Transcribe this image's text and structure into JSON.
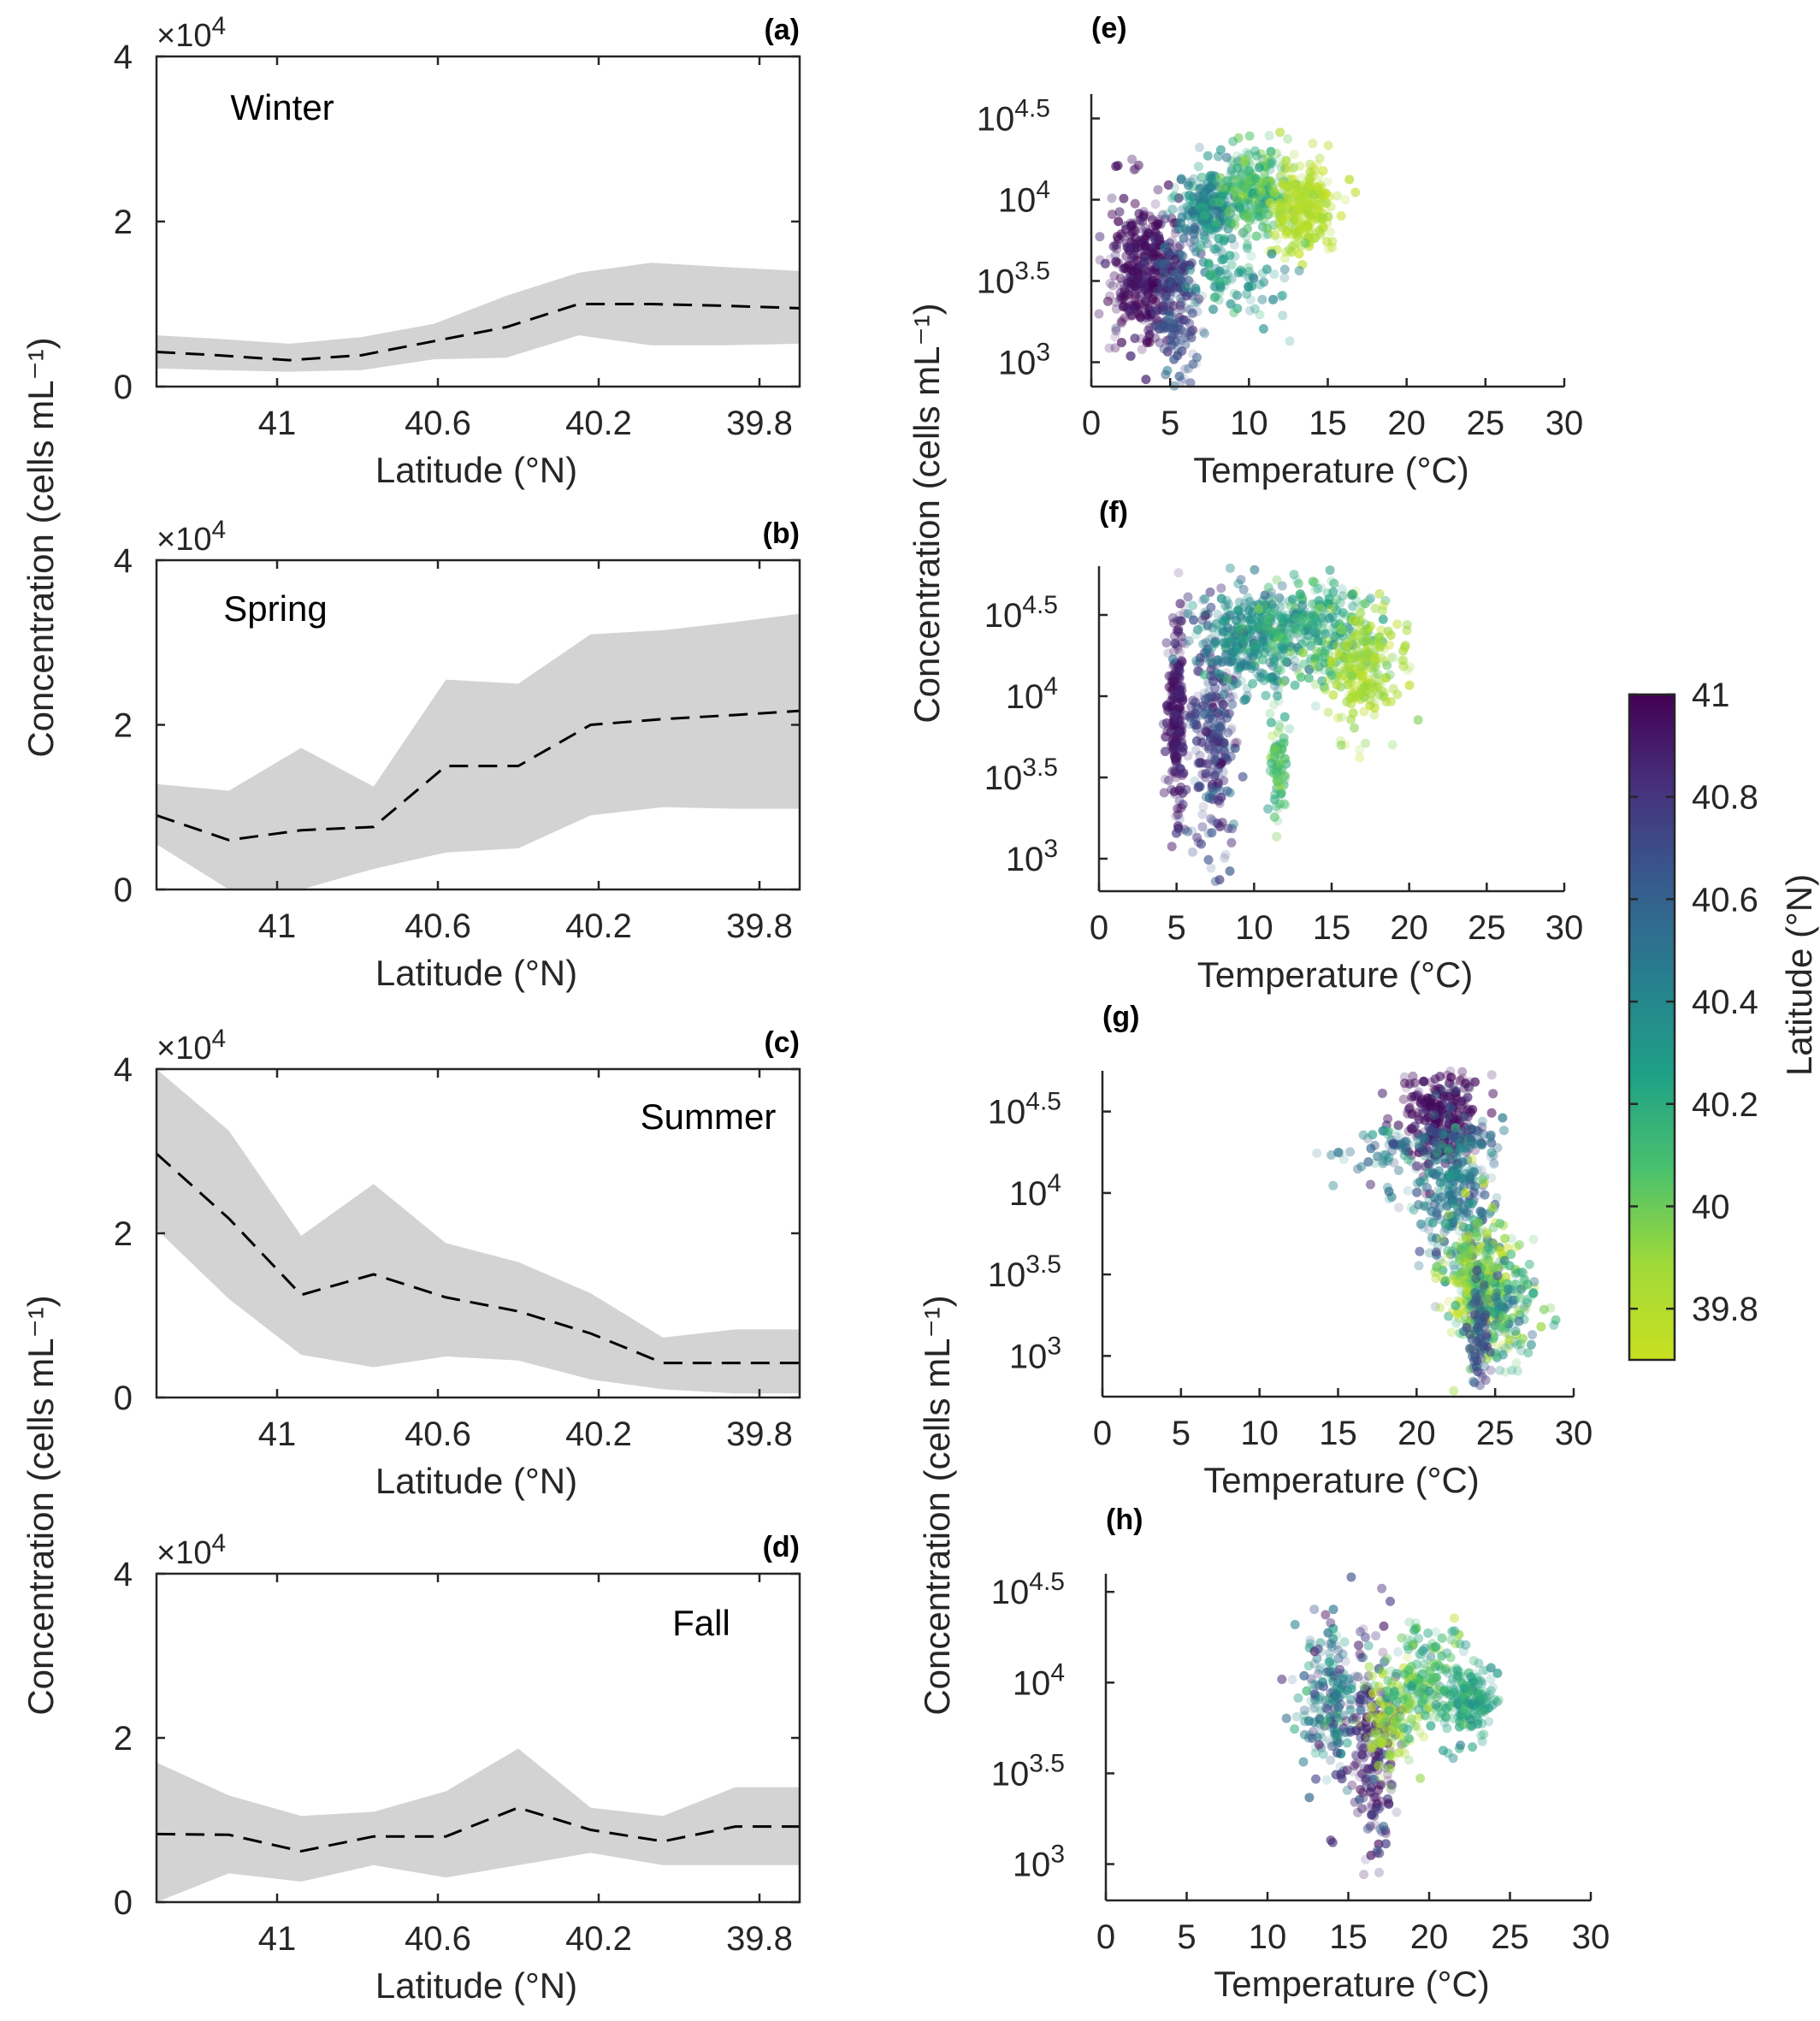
{
  "colors": {
    "band": "#d3d3d3",
    "mean_line": "#000000",
    "axis": "#262626",
    "colormap": [
      "#440154",
      "#46327e",
      "#365c8d",
      "#277f8e",
      "#1fa187",
      "#4ac16d",
      "#a0da39",
      "#c8e020"
    ]
  },
  "shared_labels": {
    "ylabel_left_top": "Concentration (cells mL⁻¹)",
    "ylabel_left_bottom": "Concentration (cells mL⁻¹)",
    "ylabel_right": "Concentration (cells mL⁻¹)"
  },
  "colorbar": {
    "label": "Latitude (°N)",
    "ticks": [
      "41",
      "40.8",
      "40.6",
      "40.4",
      "40.2",
      "40",
      "39.8"
    ],
    "tick_values": [
      41,
      40.8,
      40.6,
      40.4,
      40.2,
      40,
      39.8
    ],
    "range": [
      39.7,
      41.0
    ]
  },
  "chart_data": [
    {
      "type": "area",
      "panel": "(a)",
      "season": "Winter",
      "xlabel": "Latitude (°N)",
      "x_ticks": [
        "41",
        "40.6",
        "40.2",
        "39.8"
      ],
      "x_tick_values": [
        41,
        40.6,
        40.2,
        39.8
      ],
      "xlim": [
        41.3,
        39.7
      ],
      "ylim": [
        0,
        4
      ],
      "y_ticks": [
        "0",
        "2",
        "4"
      ],
      "y_multiplier": "× 10^4",
      "x": [
        41.3,
        41.15,
        40.97,
        40.79,
        40.61,
        40.43,
        40.25,
        40.07,
        39.89,
        39.7
      ],
      "mean": [
        0.42,
        0.38,
        0.32,
        0.38,
        0.55,
        0.72,
        1.0,
        1.0,
        0.98,
        0.95
      ],
      "lower": [
        0.22,
        0.2,
        0.18,
        0.2,
        0.33,
        0.35,
        0.62,
        0.5,
        0.5,
        0.52
      ],
      "upper": [
        0.62,
        0.58,
        0.52,
        0.6,
        0.76,
        1.1,
        1.38,
        1.5,
        1.45,
        1.4
      ]
    },
    {
      "type": "area",
      "panel": "(b)",
      "season": "Spring",
      "xlabel": "Latitude (°N)",
      "x_ticks": [
        "41",
        "40.6",
        "40.2",
        "39.8"
      ],
      "x_tick_values": [
        41,
        40.6,
        40.2,
        39.8
      ],
      "xlim": [
        41.3,
        39.7
      ],
      "ylim": [
        0,
        4
      ],
      "y_ticks": [
        "0",
        "2",
        "4"
      ],
      "y_multiplier": "× 10^4",
      "x": [
        41.3,
        41.12,
        40.94,
        40.76,
        40.58,
        40.4,
        40.22,
        40.04,
        39.86,
        39.7
      ],
      "mean": [
        0.9,
        0.6,
        0.72,
        0.76,
        1.5,
        1.5,
        2.0,
        2.07,
        2.12,
        2.17
      ],
      "lower": [
        0.55,
        0.0,
        0.0,
        0.25,
        0.45,
        0.5,
        0.9,
        1.0,
        0.98,
        0.98
      ],
      "upper": [
        1.28,
        1.2,
        1.72,
        1.25,
        2.55,
        2.5,
        3.1,
        3.15,
        3.25,
        3.35
      ]
    },
    {
      "type": "area",
      "panel": "(c)",
      "season": "Summer",
      "xlabel": "Latitude (°N)",
      "x_ticks": [
        "41",
        "40.6",
        "40.2",
        "39.8"
      ],
      "x_tick_values": [
        41,
        40.6,
        40.2,
        39.8
      ],
      "xlim": [
        41.3,
        39.7
      ],
      "ylim": [
        0,
        4
      ],
      "y_ticks": [
        "0",
        "2",
        "4"
      ],
      "y_multiplier": "× 10^4",
      "x": [
        41.3,
        41.12,
        40.94,
        40.76,
        40.58,
        40.4,
        40.22,
        40.04,
        39.86,
        39.7
      ],
      "mean": [
        2.97,
        2.18,
        1.25,
        1.5,
        1.22,
        1.05,
        0.78,
        0.42,
        0.42,
        0.42
      ],
      "lower": [
        2.05,
        1.2,
        0.52,
        0.37,
        0.5,
        0.45,
        0.22,
        0.1,
        0.05,
        0.05
      ],
      "upper": [
        4.0,
        3.25,
        1.97,
        2.6,
        1.88,
        1.65,
        1.27,
        0.73,
        0.83,
        0.83
      ]
    },
    {
      "type": "area",
      "panel": "(d)",
      "season": "Fall",
      "xlabel": "Latitude (°N)",
      "x_ticks": [
        "41",
        "40.6",
        "40.2",
        "39.8"
      ],
      "x_tick_values": [
        41,
        40.6,
        40.2,
        39.8
      ],
      "xlim": [
        41.3,
        39.7
      ],
      "ylim": [
        0,
        4
      ],
      "y_ticks": [
        "0",
        "2",
        "4"
      ],
      "y_multiplier": "× 10^4",
      "x": [
        41.3,
        41.12,
        40.94,
        40.76,
        40.58,
        40.4,
        40.22,
        40.04,
        39.86,
        39.7
      ],
      "mean": [
        0.83,
        0.82,
        0.62,
        0.8,
        0.8,
        1.15,
        0.88,
        0.74,
        0.92,
        0.92
      ],
      "lower": [
        0.0,
        0.35,
        0.25,
        0.45,
        0.3,
        0.45,
        0.6,
        0.45,
        0.45,
        0.45
      ],
      "upper": [
        1.7,
        1.3,
        1.05,
        1.1,
        1.35,
        1.87,
        1.15,
        1.05,
        1.4,
        1.4
      ]
    },
    {
      "type": "scatter",
      "panel": "(e)",
      "season": "Winter",
      "xlabel": "Temperature (°C)",
      "x_ticks": [
        "0",
        "5",
        "10",
        "15",
        "20",
        "25",
        "30"
      ],
      "x_tick_values": [
        0,
        5,
        10,
        15,
        20,
        25,
        30
      ],
      "xlim": [
        0,
        30
      ],
      "ylim_log10": [
        2.85,
        4.65
      ],
      "y_ticks": [
        "10^3",
        "10^3.5",
        "10^4",
        "10^4.5"
      ],
      "y_tick_values_log10": [
        3,
        3.5,
        4,
        4.5
      ],
      "color_by": "Latitude (°N)",
      "clusters": [
        {
          "t": 3.5,
          "tsd": 1.2,
          "logc": 3.55,
          "csd": 0.22,
          "lat": 40.95,
          "latsd": 0.06,
          "n": 420
        },
        {
          "t": 5.5,
          "tsd": 0.7,
          "logc": 3.35,
          "csd": 0.25,
          "lat": 40.7,
          "latsd": 0.1,
          "n": 160
        },
        {
          "t": 7.5,
          "tsd": 1.0,
          "logc": 3.95,
          "csd": 0.12,
          "lat": 40.4,
          "latsd": 0.1,
          "n": 220
        },
        {
          "t": 10.5,
          "tsd": 1.3,
          "logc": 4.05,
          "csd": 0.13,
          "lat": 40.1,
          "latsd": 0.12,
          "n": 260
        },
        {
          "t": 13.5,
          "tsd": 1.0,
          "logc": 3.95,
          "csd": 0.15,
          "lat": 39.8,
          "latsd": 0.06,
          "n": 260
        },
        {
          "t": 9.0,
          "tsd": 1.5,
          "logc": 3.5,
          "csd": 0.12,
          "lat": 40.3,
          "latsd": 0.1,
          "n": 90
        }
      ]
    },
    {
      "type": "scatter",
      "panel": "(f)",
      "season": "Spring",
      "xlabel": "Temperature (°C)",
      "x_ticks": [
        "0",
        "5",
        "10",
        "15",
        "20",
        "25",
        "30"
      ],
      "x_tick_values": [
        0,
        5,
        10,
        15,
        20,
        25,
        30
      ],
      "xlim": [
        0,
        30
      ],
      "ylim_log10": [
        2.8,
        4.8
      ],
      "y_ticks": [
        "10^3",
        "10^3.5",
        "10^4",
        "10^4.5"
      ],
      "y_tick_values_log10": [
        3,
        3.5,
        4,
        4.5
      ],
      "color_by": "Latitude (°N)",
      "clusters": [
        {
          "t": 5.0,
          "tsd": 0.3,
          "logc": 3.85,
          "csd": 0.3,
          "lat": 40.9,
          "latsd": 0.06,
          "n": 220
        },
        {
          "t": 7.3,
          "tsd": 0.8,
          "logc": 3.8,
          "csd": 0.35,
          "lat": 40.75,
          "latsd": 0.1,
          "n": 260
        },
        {
          "t": 9.5,
          "tsd": 1.5,
          "logc": 4.35,
          "csd": 0.15,
          "lat": 40.4,
          "latsd": 0.12,
          "n": 280
        },
        {
          "t": 13.5,
          "tsd": 2.0,
          "logc": 4.4,
          "csd": 0.15,
          "lat": 40.2,
          "latsd": 0.12,
          "n": 300
        },
        {
          "t": 17.0,
          "tsd": 1.3,
          "logc": 4.2,
          "csd": 0.18,
          "lat": 39.85,
          "latsd": 0.08,
          "n": 240
        },
        {
          "t": 11.5,
          "tsd": 0.3,
          "logc": 3.6,
          "csd": 0.2,
          "lat": 40.1,
          "latsd": 0.1,
          "n": 80
        }
      ]
    },
    {
      "type": "scatter",
      "panel": "(g)",
      "season": "Summer",
      "xlabel": "Temperature (°C)",
      "x_ticks": [
        "0",
        "5",
        "10",
        "15",
        "20",
        "25",
        "30"
      ],
      "x_tick_values": [
        0,
        5,
        10,
        15,
        20,
        25,
        30
      ],
      "xlim": [
        0,
        30
      ],
      "ylim_log10": [
        2.75,
        4.75
      ],
      "y_ticks": [
        "10^3",
        "10^3.5",
        "10^4",
        "10^4.5"
      ],
      "y_tick_values_log10": [
        3,
        3.5,
        4,
        4.5
      ],
      "color_by": "Latitude (°N)",
      "clusters": [
        {
          "t": 21.5,
          "tsd": 1.2,
          "logc": 4.45,
          "csd": 0.15,
          "lat": 40.95,
          "latsd": 0.05,
          "n": 280
        },
        {
          "t": 22.5,
          "tsd": 1.3,
          "logc": 4.0,
          "csd": 0.25,
          "lat": 40.5,
          "latsd": 0.15,
          "n": 300
        },
        {
          "t": 24.0,
          "tsd": 1.1,
          "logc": 3.45,
          "csd": 0.2,
          "lat": 39.95,
          "latsd": 0.15,
          "n": 320
        },
        {
          "t": 25.5,
          "tsd": 1.2,
          "logc": 3.3,
          "csd": 0.15,
          "lat": 40.2,
          "latsd": 0.2,
          "n": 160
        },
        {
          "t": 18.5,
          "tsd": 2.0,
          "logc": 4.25,
          "csd": 0.08,
          "lat": 40.5,
          "latsd": 0.15,
          "n": 70
        },
        {
          "t": 24.0,
          "tsd": 0.4,
          "logc": 3.1,
          "csd": 0.15,
          "lat": 40.7,
          "latsd": 0.1,
          "n": 80
        }
      ]
    },
    {
      "type": "scatter",
      "panel": "(h)",
      "season": "Fall",
      "xlabel": "Temperature (°C)",
      "x_ticks": [
        "0",
        "5",
        "10",
        "15",
        "20",
        "25",
        "30"
      ],
      "x_tick_values": [
        0,
        5,
        10,
        15,
        20,
        25,
        30
      ],
      "xlim": [
        0,
        30
      ],
      "ylim_log10": [
        2.8,
        4.6
      ],
      "y_ticks": [
        "10^3",
        "10^3.5",
        "10^4",
        "10^4.5"
      ],
      "y_tick_values_log10": [
        3,
        3.5,
        4,
        4.5
      ],
      "color_by": "Latitude (°N)",
      "clusters": [
        {
          "t": 14.0,
          "tsd": 1.0,
          "logc": 3.9,
          "csd": 0.2,
          "lat": 40.5,
          "latsd": 0.2,
          "n": 200
        },
        {
          "t": 16.5,
          "tsd": 0.8,
          "logc": 3.6,
          "csd": 0.3,
          "lat": 40.85,
          "latsd": 0.1,
          "n": 200
        },
        {
          "t": 17.5,
          "tsd": 0.8,
          "logc": 3.75,
          "csd": 0.15,
          "lat": 39.85,
          "latsd": 0.08,
          "n": 90
        },
        {
          "t": 19.5,
          "tsd": 1.2,
          "logc": 4.0,
          "csd": 0.15,
          "lat": 40.1,
          "latsd": 0.15,
          "n": 200
        },
        {
          "t": 22.5,
          "tsd": 0.8,
          "logc": 3.9,
          "csd": 0.1,
          "lat": 40.25,
          "latsd": 0.1,
          "n": 160
        }
      ]
    }
  ]
}
